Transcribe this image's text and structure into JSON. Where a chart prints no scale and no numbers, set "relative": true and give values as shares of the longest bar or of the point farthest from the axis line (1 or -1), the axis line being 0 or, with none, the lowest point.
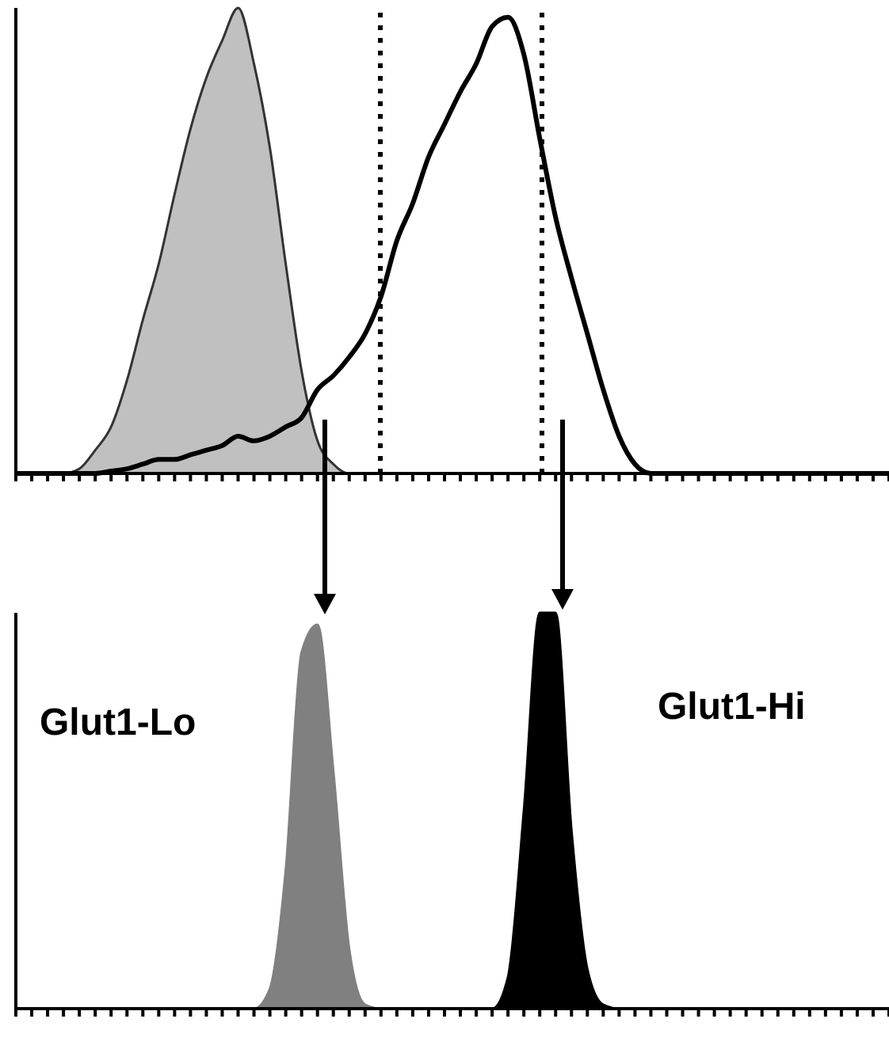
{
  "chart_data": [
    {
      "type": "area",
      "relative": true,
      "categories": [
        null,
        null,
        null,
        null,
        null,
        null,
        null,
        null,
        null,
        null,
        null,
        null,
        null,
        null,
        null,
        null,
        null,
        null,
        null,
        null,
        null,
        null,
        null,
        null,
        null,
        null,
        null,
        null,
        null,
        null,
        null,
        null,
        null,
        null,
        null,
        null,
        null,
        null,
        null,
        null,
        null,
        null,
        null,
        null,
        null,
        null,
        null,
        null,
        null,
        null,
        null,
        null,
        null,
        null,
        null,
        null
      ],
      "series": [
        {
          "color": "#c0c0c0",
          "values": [
            0,
            0,
            0,
            0,
            0.01,
            0.05,
            0.1,
            0.2,
            0.33,
            0.45,
            0.6,
            0.74,
            0.85,
            0.93,
            1.0,
            0.88,
            0.7,
            0.45,
            0.22,
            0.07,
            0.02,
            0,
            0,
            0,
            0,
            0,
            0,
            0,
            0,
            0,
            0,
            0,
            0,
            0,
            0,
            0,
            0,
            0,
            0,
            0,
            0,
            0,
            0,
            0,
            0,
            0,
            0,
            0,
            0,
            0,
            0,
            0,
            0,
            0,
            0,
            0
          ]
        },
        {
          "type": "line",
          "color": "#000000",
          "values": [
            0,
            0,
            0,
            0,
            0,
            0,
            0.005,
            0.01,
            0.02,
            0.03,
            0.03,
            0.04,
            0.05,
            0.06,
            0.08,
            0.07,
            0.08,
            0.1,
            0.12,
            0.18,
            0.21,
            0.25,
            0.3,
            0.38,
            0.5,
            0.58,
            0.68,
            0.75,
            0.82,
            0.88,
            0.96,
            0.98,
            0.9,
            0.72,
            0.55,
            0.42,
            0.3,
            0.18,
            0.08,
            0.02,
            0,
            0,
            0,
            0,
            0,
            0,
            0,
            0,
            0,
            0,
            0,
            0,
            0,
            0,
            0,
            0
          ]
        }
      ],
      "grid": false,
      "legend": false
    },
    {
      "type": "area",
      "relative": true,
      "categories": [
        null,
        null,
        null,
        null,
        null,
        null,
        null,
        null,
        null,
        null,
        null,
        null,
        null,
        null,
        null,
        null,
        null,
        null,
        null,
        null,
        null,
        null,
        null,
        null,
        null,
        null,
        null,
        null,
        null,
        null,
        null,
        null,
        null,
        null,
        null,
        null,
        null,
        null,
        null,
        null,
        null,
        null,
        null,
        null,
        null,
        null,
        null,
        null,
        null,
        null,
        null,
        null,
        null,
        null,
        null,
        null
      ],
      "series": [
        {
          "color": "#808080",
          "values": [
            0,
            0,
            0,
            0,
            0,
            0,
            0,
            0,
            0,
            0,
            0,
            0,
            0,
            0,
            0,
            0,
            0.05,
            0.35,
            0.9,
            0.97,
            0.6,
            0.15,
            0.01,
            0,
            0,
            0,
            0,
            0,
            0,
            0,
            0,
            0,
            0,
            0,
            0,
            0,
            0,
            0,
            0,
            0,
            0,
            0,
            0,
            0,
            0,
            0,
            0,
            0,
            0,
            0,
            0,
            0,
            0,
            0,
            0,
            0
          ]
        },
        {
          "color": "#000000",
          "values": [
            0,
            0,
            0,
            0,
            0,
            0,
            0,
            0,
            0,
            0,
            0,
            0,
            0,
            0,
            0,
            0,
            0,
            0,
            0,
            0,
            0,
            0,
            0,
            0,
            0,
            0,
            0,
            0,
            0,
            0,
            0,
            0.08,
            0.5,
            1.0,
            1.0,
            0.45,
            0.1,
            0.01,
            0,
            0,
            0,
            0,
            0,
            0,
            0,
            0,
            0,
            0,
            0,
            0,
            0,
            0,
            0,
            0,
            0,
            0
          ]
        }
      ],
      "annotations": [
        "Glut1-Lo",
        "Glut1-Hi"
      ],
      "grid": false,
      "legend": false
    }
  ]
}
